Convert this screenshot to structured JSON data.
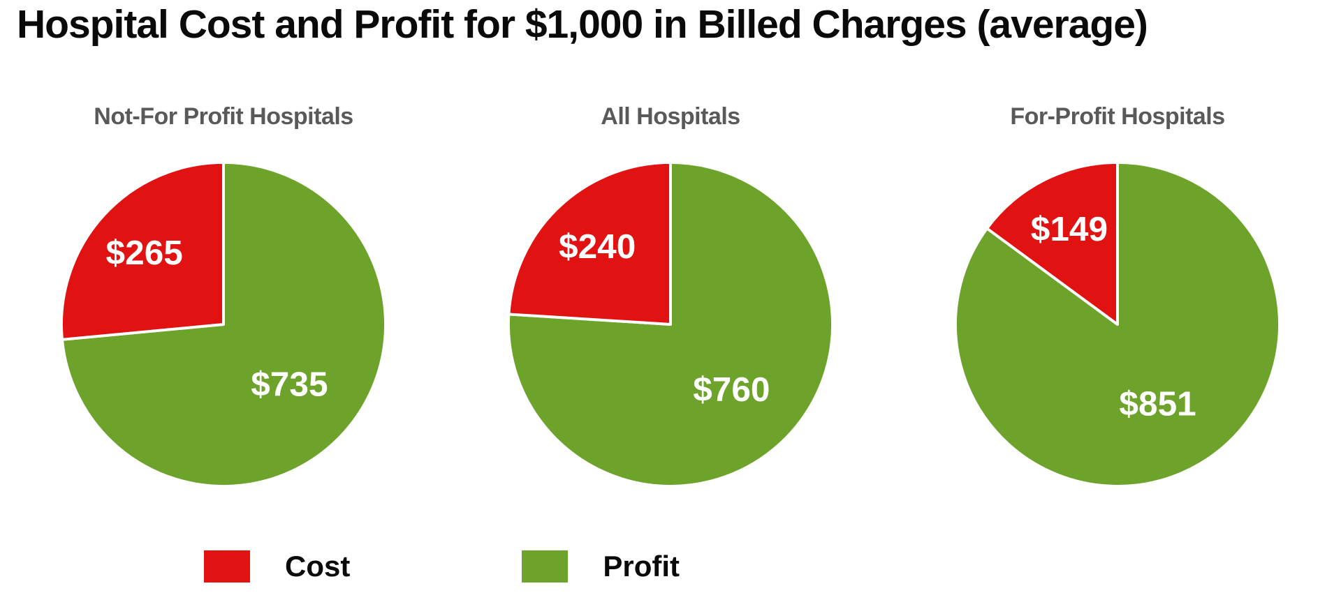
{
  "chart_data": {
    "type": "pie",
    "title": "Hospital Cost and Profit for $1,000 in Billed Charges (average)",
    "total_per_pie": 1000,
    "direction": "clockwise",
    "start_angle_deg": 0,
    "slice_draw_order": [
      "Profit",
      "Cost"
    ],
    "colors": {
      "Cost": "#e01212",
      "Profit": "#6da32a"
    },
    "text_colors": {
      "title": "#0a0a0a",
      "subtitle": "#595959",
      "slice_label": "#ffffff"
    },
    "legend": {
      "position": "bottom",
      "entries": [
        {
          "label": "Cost"
        },
        {
          "label": "Profit"
        }
      ]
    },
    "pies": [
      {
        "subtitle": "Not-For Profit Hospitals",
        "cost": {
          "value": 265,
          "label": "$265"
        },
        "profit": {
          "value": 735,
          "label": "$735"
        }
      },
      {
        "subtitle": "All Hospitals",
        "cost": {
          "value": 240,
          "label": "$240"
        },
        "profit": {
          "value": 760,
          "label": "$760"
        }
      },
      {
        "subtitle": "For-Profit Hospitals",
        "cost": {
          "value": 149,
          "label": "$149"
        },
        "profit": {
          "value": 851,
          "label": "$851"
        }
      }
    ]
  }
}
